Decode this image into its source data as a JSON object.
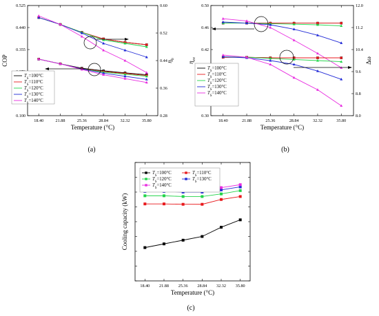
{
  "figure": {
    "panels": [
      {
        "id": "a",
        "label": "(a)"
      },
      {
        "id": "b",
        "label": "(b)"
      },
      {
        "id": "c",
        "label": "(c)"
      }
    ],
    "legend_entries": [
      "T_S=100°C",
      "T_S=110°C",
      "T_S=120°C",
      "T_S=130°C",
      "T_S=140°C"
    ],
    "series_colors": [
      "#000000",
      "#e8191c",
      "#22d44a",
      "#1f28d6",
      "#e82ce0"
    ]
  },
  "chart_data": [
    {
      "panel": "a",
      "type": "line",
      "x": [
        18.4,
        21.88,
        25.36,
        28.84,
        32.32,
        35.8
      ],
      "x_tick_labels": [
        "18.40",
        "21.88",
        "25.36",
        "28.84",
        "32.32",
        "35.80"
      ],
      "xlabel": "Temperature (°C)",
      "ylabel": "COP",
      "ylabel2": "ηh",
      "ylim": [
        0.1,
        0.525
      ],
      "y_ticks": [
        "0.100",
        "0.185",
        "0.270",
        "0.355",
        "0.440",
        "0.525"
      ],
      "ylim2": [
        0.28,
        0.6
      ],
      "y2_ticks": [
        "0.28",
        "0.36",
        "0.44",
        "0.52",
        "0.60"
      ],
      "legend_placement": "bottom-left",
      "series": [
        {
          "name": "T_S=100°C",
          "axis": "left",
          "values": [
            0.318,
            0.3,
            0.283,
            0.273,
            0.265,
            0.258
          ]
        },
        {
          "name": "T_S=110°C",
          "axis": "left",
          "values": [
            0.318,
            0.3,
            0.281,
            0.27,
            0.263,
            0.255
          ]
        },
        {
          "name": "T_S=120°C",
          "axis": "left",
          "values": [
            0.318,
            0.3,
            0.28,
            0.268,
            0.26,
            0.252
          ]
        },
        {
          "name": "T_S=130°C",
          "axis": "left",
          "values": [
            0.318,
            0.3,
            0.28,
            0.264,
            0.252,
            0.24
          ]
        },
        {
          "name": "T_S=140°C",
          "axis": "left",
          "values": [
            0.318,
            0.3,
            0.278,
            0.258,
            0.243,
            0.228
          ]
        },
        {
          "name": "T_S=100°C",
          "axis": "right",
          "values": [
            0.565,
            0.545,
            0.522,
            0.503,
            0.493,
            0.486
          ]
        },
        {
          "name": "T_S=110°C",
          "axis": "right",
          "values": [
            0.565,
            0.545,
            0.522,
            0.503,
            0.493,
            0.486
          ]
        },
        {
          "name": "T_S=120°C",
          "axis": "right",
          "values": [
            0.565,
            0.545,
            0.522,
            0.5,
            0.49,
            0.48
          ]
        },
        {
          "name": "T_S=130°C",
          "axis": "right",
          "values": [
            0.565,
            0.545,
            0.52,
            0.49,
            0.47,
            0.45
          ]
        },
        {
          "name": "T_S=140°C",
          "axis": "right",
          "values": [
            0.57,
            0.545,
            0.51,
            0.47,
            0.44,
            0.405
          ]
        }
      ]
    },
    {
      "panel": "b",
      "type": "line",
      "x": [
        18.4,
        21.88,
        25.36,
        28.84,
        32.32,
        35.8
      ],
      "x_tick_labels": [
        "18.40",
        "21.88",
        "25.36",
        "28.84",
        "32.32",
        "35.80"
      ],
      "xlabel": "Temperature (°C)",
      "ylabel": "ηex",
      "ylabel2": "Δω",
      "ylim": [
        0.3,
        0.5
      ],
      "y_ticks": [
        "0.30",
        "0.34",
        "0.38",
        "0.42",
        "0.46",
        "0.50"
      ],
      "ylim2": [
        8.0,
        12.0
      ],
      "y2_ticks": [
        "8.0",
        "8.8",
        "9.6",
        "10.4",
        "11.2",
        "12.0"
      ],
      "legend_placement": "bottom-left",
      "series": [
        {
          "name": "T_S=100°C",
          "axis": "left",
          "values": [
            0.468,
            0.468,
            0.468,
            0.468,
            0.468,
            0.468
          ]
        },
        {
          "name": "T_S=110°C",
          "axis": "left",
          "values": [
            0.468,
            0.468,
            0.468,
            0.468,
            0.468,
            0.468
          ]
        },
        {
          "name": "T_S=120°C",
          "axis": "left",
          "values": [
            0.468,
            0.468,
            0.467,
            0.466,
            0.465,
            0.463
          ]
        },
        {
          "name": "T_S=130°C",
          "axis": "left",
          "values": [
            0.47,
            0.468,
            0.465,
            0.457,
            0.446,
            0.432
          ]
        },
        {
          "name": "T_S=140°C",
          "axis": "left",
          "values": [
            0.476,
            0.472,
            0.46,
            0.437,
            0.413,
            0.387
          ]
        },
        {
          "name": "T_S=100°C",
          "axis": "right",
          "values": [
            10.12,
            10.12,
            10.1,
            10.1,
            10.1,
            10.1
          ]
        },
        {
          "name": "T_S=110°C",
          "axis": "right",
          "values": [
            10.12,
            10.12,
            10.1,
            10.1,
            10.1,
            10.1
          ]
        },
        {
          "name": "T_S=120°C",
          "axis": "right",
          "values": [
            10.14,
            10.12,
            10.08,
            10.04,
            10.0,
            9.96
          ]
        },
        {
          "name": "T_S=130°C",
          "axis": "right",
          "values": [
            10.14,
            10.1,
            10.0,
            9.86,
            9.62,
            9.32
          ]
        },
        {
          "name": "T_S=140°C",
          "axis": "right",
          "values": [
            10.2,
            10.12,
            9.86,
            9.38,
            8.94,
            8.36
          ]
        }
      ]
    },
    {
      "panel": "c",
      "type": "line",
      "x": [
        18.4,
        21.88,
        25.36,
        28.84,
        32.32,
        35.8
      ],
      "x_tick_labels": [
        "18.40",
        "21.88",
        "25.36",
        "28.84",
        "32.32",
        "35.80"
      ],
      "xlabel": "Temperature (°C)",
      "ylabel": "Cooling capacity (kW)",
      "ylim": [
        0,
        320
      ],
      "legend_placement": "top-left",
      "series": [
        {
          "name": "T_S=100°C",
          "values": [
            90,
            100,
            110,
            120,
            145,
            165
          ]
        },
        {
          "name": "T_S=110°C",
          "values": [
            208,
            208,
            207,
            207,
            220,
            228
          ]
        },
        {
          "name": "T_S=120°C",
          "values": [
            230,
            230,
            228,
            228,
            235,
            244
          ]
        },
        {
          "name": "T_S=130°C",
          "values": [
            242,
            242,
            240,
            240,
            246,
            254
          ]
        },
        {
          "name": "T_S=140°C",
          "values": [
            250,
            249,
            246,
            246,
            252,
            260
          ]
        }
      ]
    }
  ]
}
